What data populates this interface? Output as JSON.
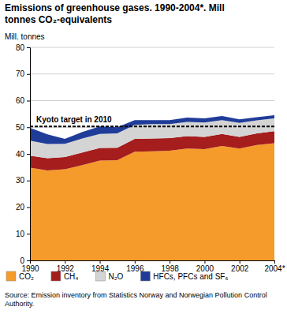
{
  "chart_data": {
    "type": "area",
    "stacked": true,
    "grid": true,
    "title": "Emissions of greenhouse gases. 1990-2004*. Mill tonnes CO₂-equivalents",
    "y_label": "Mill. tonnes",
    "source": "Source: Emission inventory from Statistics Norway and Norwegian Pollution Control Authority.",
    "x": [
      1990,
      1991,
      1992,
      1993,
      1994,
      1995,
      1996,
      1997,
      1998,
      1999,
      2000,
      2001,
      2002,
      2003,
      2004
    ],
    "xlim": [
      1990,
      2004
    ],
    "xticks": [
      1990,
      1992,
      1994,
      1996,
      1998,
      2000,
      2002,
      {
        "value": 2004,
        "label": "2004*"
      }
    ],
    "ylim": [
      0,
      80
    ],
    "yticks": [
      0,
      10,
      20,
      30,
      40,
      50,
      60,
      70,
      80
    ],
    "target": {
      "label": "Kyoto target in 2010",
      "value": 50.3
    },
    "legend": "bottom",
    "series": [
      {
        "name": "CO₂",
        "color": "#f59b2b",
        "values": [
          34.8,
          33.8,
          34.2,
          35.8,
          37.5,
          37.6,
          40.8,
          41.0,
          41.2,
          42.0,
          41.8,
          43.0,
          42.0,
          43.3,
          44.0
        ]
      },
      {
        "name": "CH₄",
        "color": "#a51d1d",
        "values": [
          4.5,
          4.6,
          4.6,
          4.7,
          4.7,
          4.7,
          4.8,
          4.8,
          4.7,
          4.7,
          4.6,
          4.5,
          4.4,
          4.4,
          4.5
        ]
      },
      {
        "name": "N₂O",
        "color": "#d4d4d4",
        "values": [
          5.7,
          5.3,
          5.0,
          5.3,
          5.3,
          5.4,
          5.3,
          5.4,
          5.3,
          5.3,
          5.4,
          5.2,
          5.2,
          4.9,
          4.8
        ]
      },
      {
        "name": "HFCs, PFCs and SF₆",
        "color": "#1f3c99",
        "values": [
          4.8,
          3.6,
          1.8,
          2.4,
          2.8,
          2.3,
          1.8,
          1.5,
          1.5,
          1.6,
          1.5,
          1.5,
          1.4,
          1.2,
          1.2
        ]
      }
    ]
  }
}
